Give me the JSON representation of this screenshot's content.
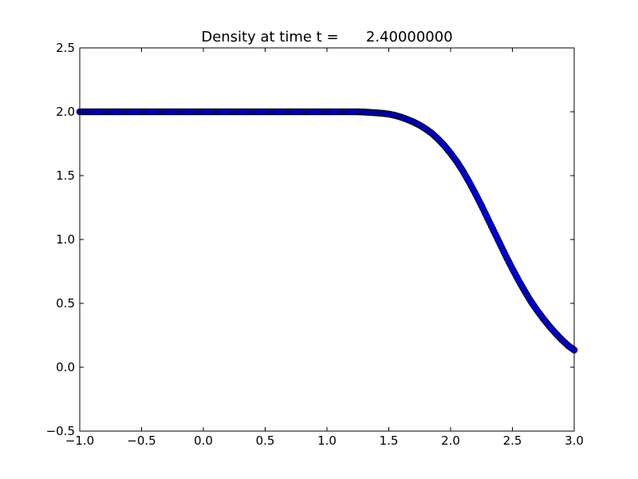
{
  "chart_data": {
    "type": "scatter",
    "title": "Density at time t =      2.40000000",
    "xlabel": "",
    "ylabel": "",
    "xlim": [
      -1.0,
      3.0
    ],
    "ylim": [
      -0.5,
      2.5
    ],
    "xticks": [
      "−1.0",
      "−0.5",
      "0.0",
      "0.5",
      "1.0",
      "1.5",
      "2.0",
      "2.5",
      "3.0"
    ],
    "yticks": [
      "−0.5",
      "0.0",
      "0.5",
      "1.0",
      "1.5",
      "2.0",
      "2.5"
    ],
    "grid": false,
    "marker_color": "#0000ff",
    "marker_edge_color": "#000000",
    "series": [
      {
        "x": [
          -1.0,
          -0.9,
          -0.8,
          -0.7,
          -0.6,
          -0.5,
          -0.4,
          -0.3,
          -0.2,
          -0.1,
          0.0,
          0.1,
          0.2,
          0.3,
          0.4,
          0.5,
          0.6,
          0.7,
          0.8,
          0.9,
          1.0,
          1.1,
          1.2,
          1.25,
          1.3,
          1.35,
          1.4,
          1.45,
          1.5,
          1.55,
          1.6,
          1.65,
          1.7,
          1.75,
          1.8,
          1.85,
          1.9,
          1.95,
          2.0,
          2.05,
          2.1,
          2.15,
          2.2,
          2.25,
          2.3,
          2.35,
          2.4,
          2.45,
          2.5,
          2.55,
          2.6,
          2.65,
          2.7,
          2.75,
          2.8,
          2.85,
          2.9,
          2.95,
          3.0
        ],
        "y": [
          2.0,
          2.0,
          2.0,
          2.0,
          2.0,
          2.0,
          2.0,
          2.0,
          2.0,
          2.0,
          2.0,
          2.0,
          2.0,
          2.0,
          2.0,
          2.0,
          2.0,
          2.0,
          2.0,
          2.0,
          2.0,
          2.0,
          2.0,
          2.0,
          1.998,
          1.995,
          1.992,
          1.988,
          1.982,
          1.972,
          1.958,
          1.94,
          1.92,
          1.895,
          1.865,
          1.83,
          1.785,
          1.735,
          1.675,
          1.61,
          1.535,
          1.45,
          1.36,
          1.265,
          1.165,
          1.065,
          0.965,
          0.865,
          0.77,
          0.68,
          0.595,
          0.515,
          0.445,
          0.38,
          0.32,
          0.265,
          0.215,
          0.17,
          0.135
        ]
      }
    ]
  }
}
